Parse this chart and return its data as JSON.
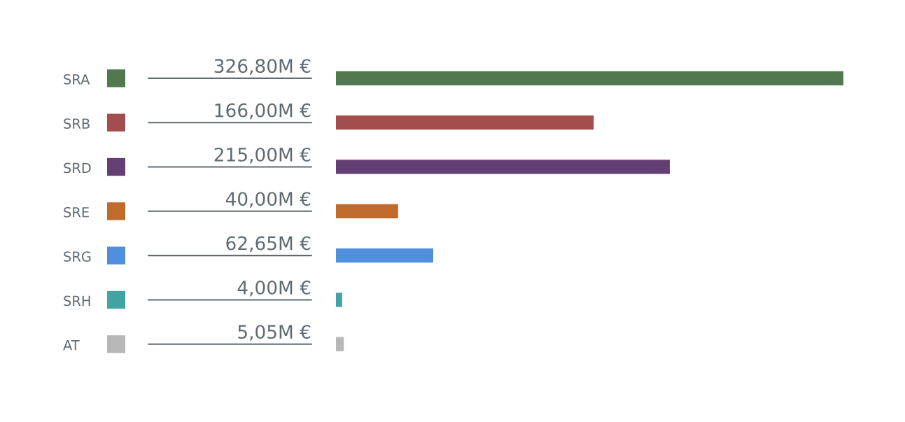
{
  "chart_data": {
    "type": "bar",
    "orientation": "horizontal",
    "categories": [
      "SRA",
      "SRB",
      "SRD",
      "SRE",
      "SRG",
      "SRH",
      "AT"
    ],
    "values": [
      326.8,
      166.0,
      215.0,
      40.0,
      62.65,
      4.0,
      5.05
    ],
    "colors": [
      "#52784f",
      "#a34e4e",
      "#643f73",
      "#c06b2c",
      "#4f8fde",
      "#43a3a2",
      "#b8b8b8"
    ],
    "value_labels": [
      "326,80M €",
      "166,00M €",
      "215,00M €",
      "40,00M €",
      "62,65M €",
      "4,00M €",
      "5,05M €"
    ]
  }
}
